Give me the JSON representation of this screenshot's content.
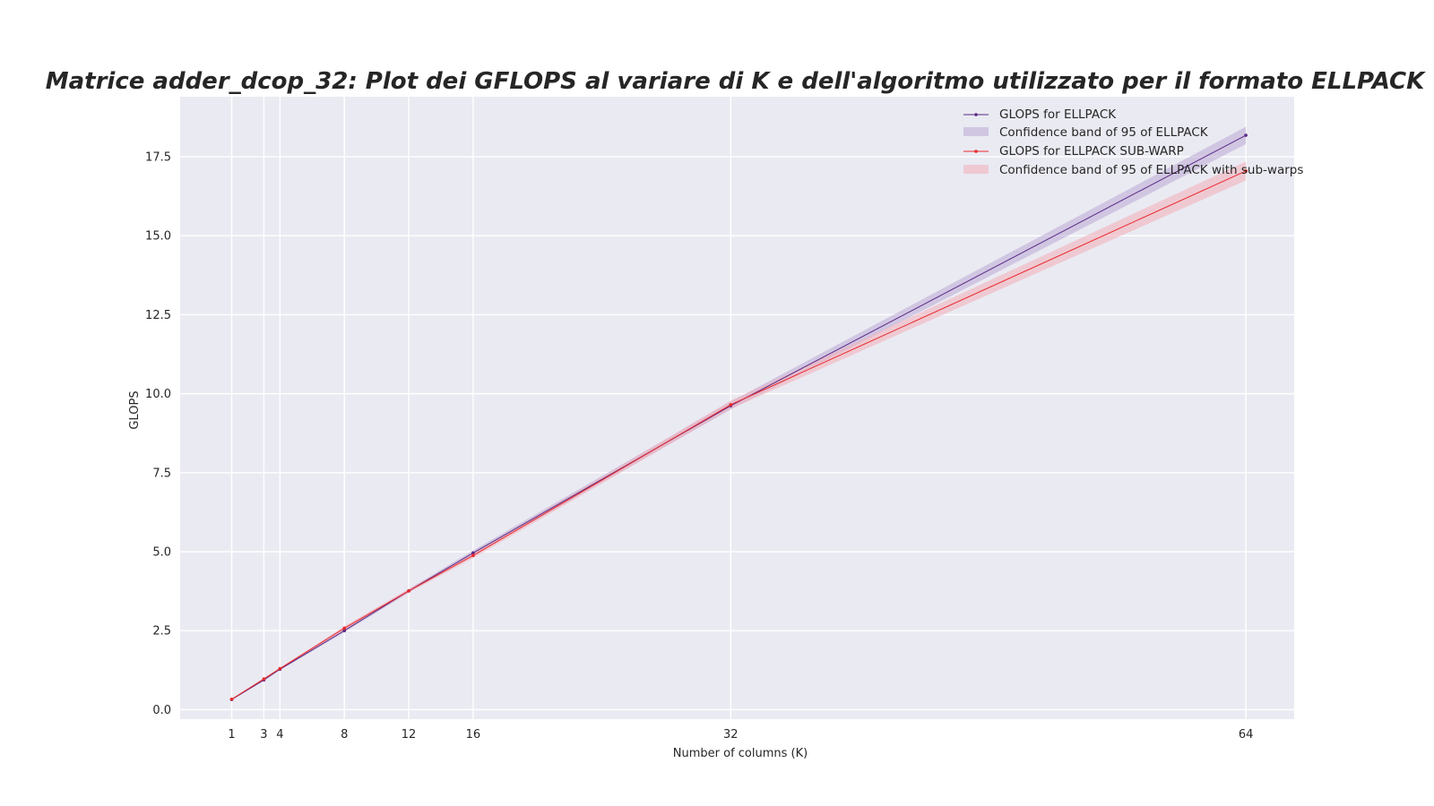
{
  "chart_data": {
    "type": "line",
    "title": "Matrice adder_dcop_32: Plot dei GFLOPS al variare di K e dell'algoritmo utilizzato per il formato ELLPACK",
    "xlabel": "Number of columns (K)",
    "ylabel": "GLOPS",
    "x": [
      1,
      3,
      4,
      8,
      12,
      16,
      32,
      64
    ],
    "x_ticks": [
      "1",
      "3",
      "4",
      "8",
      "12",
      "16",
      "32",
      "64"
    ],
    "y_ticks": [
      "0.0",
      "2.5",
      "5.0",
      "7.5",
      "10.0",
      "12.5",
      "15.0",
      "17.5"
    ],
    "xlim": [
      -2.2,
      67
    ],
    "ylim": [
      -0.3,
      19.4
    ],
    "grid": true,
    "legend_position": "top-right",
    "background": "#eaeaf2",
    "series": [
      {
        "name": "GLOPS for ELLPACK",
        "color": "#5b2a86",
        "values": [
          0.32,
          0.94,
          1.28,
          2.5,
          3.76,
          4.96,
          9.62,
          18.18
        ],
        "band_name": "Confidence band of 95 of ELLPACK",
        "band_color": "#b9a8d6",
        "band_lower": [
          0.3,
          0.91,
          1.25,
          2.45,
          3.7,
          4.88,
          9.5,
          17.9
        ],
        "band_upper": [
          0.34,
          0.97,
          1.31,
          2.55,
          3.82,
          5.04,
          9.75,
          18.45
        ]
      },
      {
        "name": "GLOPS for ELLPACK SUB-WARP",
        "color": "#e8282b",
        "values": [
          0.33,
          0.97,
          1.3,
          2.58,
          3.76,
          4.88,
          9.65,
          17.05
        ],
        "band_name": "Confidence band of 95 of ELLPACK with sub-warps",
        "band_color": "#f2b3bd",
        "band_lower": [
          0.31,
          0.94,
          1.27,
          2.52,
          3.7,
          4.8,
          9.52,
          16.75
        ],
        "band_upper": [
          0.35,
          1.0,
          1.33,
          2.64,
          3.82,
          4.96,
          9.78,
          17.35
        ]
      }
    ]
  }
}
